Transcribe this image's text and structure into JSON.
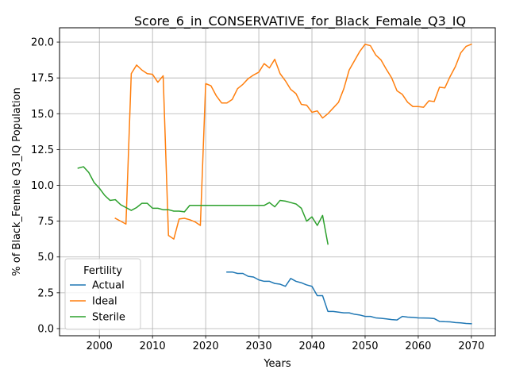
{
  "chart_data": {
    "type": "line",
    "title": "Score_6_in_CONSERVATIVE_for_Black_Female_Q3_IQ",
    "xlabel": "Years",
    "ylabel": "% of Black_Female Q3_IQ Population",
    "xlim": [
      1992.5,
      2074.5
    ],
    "ylim": [
      -0.5,
      21.0
    ],
    "xticks": [
      2000,
      2010,
      2020,
      2030,
      2040,
      2050,
      2060,
      2070
    ],
    "yticks": [
      0.0,
      2.5,
      5.0,
      7.5,
      10.0,
      12.5,
      15.0,
      17.5,
      20.0
    ],
    "xtick_labels": [
      "2000",
      "2010",
      "2020",
      "2030",
      "2040",
      "2050",
      "2060",
      "2070"
    ],
    "ytick_labels": [
      "0.0",
      "2.5",
      "5.0",
      "7.5",
      "10.0",
      "12.5",
      "15.0",
      "17.5",
      "20.0"
    ],
    "grid": true,
    "legend": {
      "title": "Fertility",
      "placement": "lower-left"
    },
    "series": [
      {
        "name": "Actual",
        "color": "#1f77b4",
        "x": [
          2024,
          2025,
          2026,
          2027,
          2028,
          2029,
          2030,
          2031,
          2032,
          2033,
          2034,
          2035,
          2036,
          2037,
          2038,
          2039,
          2040,
          2041,
          2042,
          2043,
          2044,
          2045,
          2046,
          2047,
          2048,
          2049,
          2050,
          2051,
          2052,
          2053,
          2054,
          2055,
          2056,
          2057,
          2058,
          2059,
          2060,
          2061,
          2062,
          2063,
          2064,
          2065,
          2066,
          2067,
          2068,
          2069,
          2070
        ],
        "y": [
          3.95,
          3.95,
          3.85,
          3.85,
          3.65,
          3.6,
          3.4,
          3.3,
          3.3,
          3.15,
          3.1,
          2.95,
          3.5,
          3.3,
          3.2,
          3.05,
          2.95,
          2.3,
          2.3,
          1.2,
          1.2,
          1.15,
          1.1,
          1.1,
          1.0,
          0.95,
          0.85,
          0.85,
          0.75,
          0.72,
          0.68,
          0.63,
          0.6,
          0.85,
          0.8,
          0.78,
          0.75,
          0.74,
          0.73,
          0.7,
          0.5,
          0.48,
          0.47,
          0.42,
          0.4,
          0.36,
          0.34
        ]
      },
      {
        "name": "Ideal",
        "color": "#ff7f0e",
        "x": [
          2003,
          2004,
          2005,
          2006,
          2007,
          2008,
          2009,
          2010,
          2011,
          2012,
          2013,
          2014,
          2015,
          2016,
          2017,
          2018,
          2019,
          2020,
          2021,
          2022,
          2023,
          2024,
          2025,
          2026,
          2027,
          2028,
          2029,
          2030,
          2031,
          2032,
          2033,
          2034,
          2035,
          2036,
          2037,
          2038,
          2039,
          2040,
          2041,
          2042,
          2043,
          2044,
          2045,
          2046,
          2047,
          2048,
          2049,
          2050,
          2051,
          2052,
          2053,
          2054,
          2055,
          2056,
          2057,
          2058,
          2059,
          2060,
          2061,
          2062,
          2063,
          2064,
          2065,
          2066,
          2067,
          2068,
          2069,
          2070
        ],
        "y": [
          7.7,
          7.5,
          7.3,
          17.8,
          18.4,
          18.05,
          17.8,
          17.75,
          17.2,
          17.65,
          6.5,
          6.25,
          7.65,
          7.7,
          7.6,
          7.45,
          7.2,
          17.1,
          16.95,
          16.25,
          15.75,
          15.75,
          16.0,
          16.75,
          17.05,
          17.45,
          17.7,
          17.9,
          18.5,
          18.2,
          18.8,
          17.8,
          17.3,
          16.7,
          16.4,
          15.65,
          15.6,
          15.1,
          15.2,
          14.7,
          15.0,
          15.4,
          15.8,
          16.75,
          18.05,
          18.7,
          19.35,
          19.85,
          19.75,
          19.1,
          18.75,
          18.1,
          17.5,
          16.6,
          16.35,
          15.8,
          15.5,
          15.5,
          15.45,
          15.9,
          15.85,
          16.85,
          16.8,
          17.6,
          18.3,
          19.25,
          19.7,
          19.85
        ]
      },
      {
        "name": "Sterile",
        "color": "#2ca02c",
        "x": [
          1996,
          1997,
          1998,
          1999,
          2000,
          2001,
          2002,
          2003,
          2004,
          2005,
          2006,
          2007,
          2008,
          2009,
          2010,
          2011,
          2012,
          2013,
          2014,
          2015,
          2016,
          2017,
          2018,
          2019,
          2020,
          2021,
          2022,
          2023,
          2024,
          2025,
          2026,
          2027,
          2028,
          2029,
          2030,
          2031,
          2032,
          2033,
          2034,
          2035,
          2036,
          2037,
          2038,
          2039,
          2040,
          2041,
          2042,
          2043
        ],
        "y": [
          11.2,
          11.3,
          10.9,
          10.2,
          9.8,
          9.3,
          8.95,
          9.0,
          8.65,
          8.45,
          8.25,
          8.45,
          8.75,
          8.75,
          8.4,
          8.4,
          8.3,
          8.3,
          8.2,
          8.2,
          8.15,
          8.6,
          8.6,
          8.6,
          8.6,
          8.6,
          8.6,
          8.6,
          8.6,
          8.6,
          8.6,
          8.6,
          8.6,
          8.6,
          8.6,
          8.6,
          8.8,
          8.5,
          8.95,
          8.9,
          8.8,
          8.7,
          8.4,
          7.5,
          7.8,
          7.2,
          7.9,
          5.9
        ]
      }
    ]
  }
}
